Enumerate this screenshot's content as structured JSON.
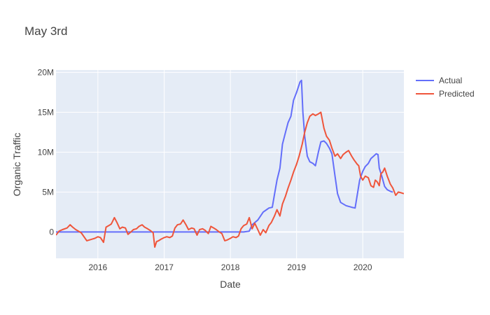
{
  "chart_data": {
    "type": "line",
    "title": "May 3rd",
    "xlabel": "Date",
    "ylabel": "Organic Traffic",
    "x_range": [
      "2015-05-15",
      "2020-08-15"
    ],
    "ylim": [
      -3300000,
      20300000
    ],
    "x_ticks": [
      {
        "label": "2016",
        "date": "2016-01-01"
      },
      {
        "label": "2017",
        "date": "2017-01-01"
      },
      {
        "label": "2018",
        "date": "2018-01-01"
      },
      {
        "label": "2019",
        "date": "2019-01-01"
      },
      {
        "label": "2020",
        "date": "2020-01-01"
      }
    ],
    "y_ticks": [
      {
        "label": "0",
        "value": 0
      },
      {
        "label": "5M",
        "value": 5000000
      },
      {
        "label": "10M",
        "value": 10000000
      },
      {
        "label": "15M",
        "value": 15000000
      },
      {
        "label": "20M",
        "value": 20000000
      }
    ],
    "grid": true,
    "legend": "top-right, outside plot",
    "background_color": "#E5ECF6",
    "series": [
      {
        "name": "Actual",
        "color": "#636EFA",
        "points": [
          [
            "2015-05-15",
            0
          ],
          [
            "2016-06-01",
            0
          ],
          [
            "2017-06-01",
            0
          ],
          [
            "2018-01-01",
            0
          ],
          [
            "2018-03-15",
            0
          ],
          [
            "2018-04-15",
            100000
          ],
          [
            "2018-05-01",
            900000
          ],
          [
            "2018-06-01",
            1500000
          ],
          [
            "2018-07-01",
            2500000
          ],
          [
            "2018-07-20",
            2800000
          ],
          [
            "2018-08-01",
            3000000
          ],
          [
            "2018-08-20",
            3100000
          ],
          [
            "2018-09-01",
            4700000
          ],
          [
            "2018-09-15",
            6500000
          ],
          [
            "2018-10-01",
            8000000
          ],
          [
            "2018-10-15",
            11000000
          ],
          [
            "2018-11-01",
            12500000
          ],
          [
            "2018-11-15",
            13700000
          ],
          [
            "2018-12-01",
            14500000
          ],
          [
            "2018-12-15",
            16500000
          ],
          [
            "2019-01-01",
            17500000
          ],
          [
            "2019-01-20",
            18800000
          ],
          [
            "2019-01-28",
            19000000
          ],
          [
            "2019-02-05",
            15000000
          ],
          [
            "2019-02-15",
            12000000
          ],
          [
            "2019-03-01",
            9500000
          ],
          [
            "2019-03-15",
            8800000
          ],
          [
            "2019-04-01",
            8600000
          ],
          [
            "2019-04-15",
            8300000
          ],
          [
            "2019-05-01",
            10000000
          ],
          [
            "2019-05-15",
            11300000
          ],
          [
            "2019-06-01",
            11400000
          ],
          [
            "2019-06-15",
            11100000
          ],
          [
            "2019-07-01",
            10500000
          ],
          [
            "2019-07-15",
            9800000
          ],
          [
            "2019-08-01",
            7000000
          ],
          [
            "2019-08-15",
            4800000
          ],
          [
            "2019-09-01",
            3700000
          ],
          [
            "2019-10-01",
            3300000
          ],
          [
            "2019-11-01",
            3100000
          ],
          [
            "2019-11-20",
            3000000
          ],
          [
            "2019-12-15",
            6500000
          ],
          [
            "2020-01-01",
            7600000
          ],
          [
            "2020-01-15",
            8200000
          ],
          [
            "2020-02-01",
            8600000
          ],
          [
            "2020-02-15",
            9200000
          ],
          [
            "2020-03-01",
            9500000
          ],
          [
            "2020-03-15",
            9800000
          ],
          [
            "2020-03-25",
            9700000
          ],
          [
            "2020-04-01",
            8000000
          ],
          [
            "2020-04-15",
            7000000
          ],
          [
            "2020-05-01",
            5700000
          ],
          [
            "2020-05-15",
            5300000
          ],
          [
            "2020-06-01",
            5100000
          ],
          [
            "2020-06-15",
            5000000
          ]
        ]
      },
      {
        "name": "Predicted",
        "color": "#EF553B",
        "points": [
          [
            "2015-05-15",
            -400000
          ],
          [
            "2015-06-01",
            100000
          ],
          [
            "2015-06-20",
            300000
          ],
          [
            "2015-07-15",
            500000
          ],
          [
            "2015-08-01",
            900000
          ],
          [
            "2015-08-15",
            600000
          ],
          [
            "2015-09-01",
            300000
          ],
          [
            "2015-10-01",
            -100000
          ],
          [
            "2015-11-01",
            -1100000
          ],
          [
            "2015-11-15",
            -1000000
          ],
          [
            "2015-12-01",
            -900000
          ],
          [
            "2015-12-15",
            -800000
          ],
          [
            "2016-01-01",
            -600000
          ],
          [
            "2016-01-15",
            -700000
          ],
          [
            "2016-02-01",
            -1300000
          ],
          [
            "2016-02-15",
            600000
          ],
          [
            "2016-03-01",
            800000
          ],
          [
            "2016-03-15",
            1000000
          ],
          [
            "2016-04-01",
            1800000
          ],
          [
            "2016-04-15",
            1200000
          ],
          [
            "2016-05-01",
            400000
          ],
          [
            "2016-05-15",
            600000
          ],
          [
            "2016-06-01",
            500000
          ],
          [
            "2016-06-15",
            -300000
          ],
          [
            "2016-07-01",
            0
          ],
          [
            "2016-07-15",
            300000
          ],
          [
            "2016-08-01",
            400000
          ],
          [
            "2016-08-15",
            700000
          ],
          [
            "2016-09-01",
            900000
          ],
          [
            "2016-09-15",
            600000
          ],
          [
            "2016-10-01",
            400000
          ],
          [
            "2016-10-15",
            200000
          ],
          [
            "2016-11-01",
            -100000
          ],
          [
            "2016-11-10",
            -1900000
          ],
          [
            "2016-11-20",
            -1200000
          ],
          [
            "2016-12-01",
            -1100000
          ],
          [
            "2016-12-15",
            -900000
          ],
          [
            "2017-01-01",
            -700000
          ],
          [
            "2017-01-15",
            -600000
          ],
          [
            "2017-02-01",
            -700000
          ],
          [
            "2017-02-15",
            -500000
          ],
          [
            "2017-03-01",
            500000
          ],
          [
            "2017-03-15",
            900000
          ],
          [
            "2017-04-01",
            1000000
          ],
          [
            "2017-04-15",
            1500000
          ],
          [
            "2017-05-01",
            900000
          ],
          [
            "2017-05-15",
            300000
          ],
          [
            "2017-06-01",
            500000
          ],
          [
            "2017-06-15",
            400000
          ],
          [
            "2017-07-01",
            -400000
          ],
          [
            "2017-07-15",
            300000
          ],
          [
            "2017-08-01",
            400000
          ],
          [
            "2017-08-15",
            200000
          ],
          [
            "2017-09-01",
            -200000
          ],
          [
            "2017-09-15",
            700000
          ],
          [
            "2017-10-01",
            500000
          ],
          [
            "2017-10-15",
            300000
          ],
          [
            "2017-11-01",
            0
          ],
          [
            "2017-11-15",
            -200000
          ],
          [
            "2017-12-01",
            -1100000
          ],
          [
            "2017-12-15",
            -1000000
          ],
          [
            "2018-01-01",
            -800000
          ],
          [
            "2018-01-15",
            -600000
          ],
          [
            "2018-02-01",
            -700000
          ],
          [
            "2018-02-15",
            -500000
          ],
          [
            "2018-03-01",
            400000
          ],
          [
            "2018-03-15",
            800000
          ],
          [
            "2018-04-01",
            1000000
          ],
          [
            "2018-04-15",
            1800000
          ],
          [
            "2018-05-01",
            400000
          ],
          [
            "2018-05-15",
            1100000
          ],
          [
            "2018-06-01",
            300000
          ],
          [
            "2018-06-15",
            -400000
          ],
          [
            "2018-07-01",
            300000
          ],
          [
            "2018-07-15",
            -100000
          ],
          [
            "2018-08-01",
            800000
          ],
          [
            "2018-08-15",
            1200000
          ],
          [
            "2018-09-01",
            2000000
          ],
          [
            "2018-09-15",
            2800000
          ],
          [
            "2018-10-01",
            2000000
          ],
          [
            "2018-10-15",
            3500000
          ],
          [
            "2018-11-01",
            4500000
          ],
          [
            "2018-11-15",
            5500000
          ],
          [
            "2018-12-01",
            6500000
          ],
          [
            "2018-12-15",
            7500000
          ],
          [
            "2019-01-01",
            8500000
          ],
          [
            "2019-01-15",
            9500000
          ],
          [
            "2019-02-01",
            11000000
          ],
          [
            "2019-02-15",
            12500000
          ],
          [
            "2019-03-01",
            13700000
          ],
          [
            "2019-03-15",
            14500000
          ],
          [
            "2019-04-01",
            14800000
          ],
          [
            "2019-04-15",
            14600000
          ],
          [
            "2019-05-01",
            14800000
          ],
          [
            "2019-05-15",
            15000000
          ],
          [
            "2019-06-01",
            13000000
          ],
          [
            "2019-06-15",
            12000000
          ],
          [
            "2019-07-01",
            11500000
          ],
          [
            "2019-07-15",
            10500000
          ],
          [
            "2019-08-01",
            9500000
          ],
          [
            "2019-08-15",
            9800000
          ],
          [
            "2019-09-01",
            9200000
          ],
          [
            "2019-09-15",
            9700000
          ],
          [
            "2019-10-01",
            10000000
          ],
          [
            "2019-10-15",
            10200000
          ],
          [
            "2019-11-01",
            9500000
          ],
          [
            "2019-11-15",
            9000000
          ],
          [
            "2019-12-01",
            8500000
          ],
          [
            "2019-12-10",
            8300000
          ],
          [
            "2019-12-20",
            7000000
          ],
          [
            "2020-01-01",
            6500000
          ],
          [
            "2020-01-15",
            7000000
          ],
          [
            "2020-02-01",
            6800000
          ],
          [
            "2020-02-15",
            5800000
          ],
          [
            "2020-03-01",
            5600000
          ],
          [
            "2020-03-10",
            6500000
          ],
          [
            "2020-03-20",
            6300000
          ],
          [
            "2020-04-01",
            5800000
          ],
          [
            "2020-04-10",
            7300000
          ],
          [
            "2020-04-20",
            7500000
          ],
          [
            "2020-05-01",
            8000000
          ],
          [
            "2020-05-15",
            7000000
          ],
          [
            "2020-06-01",
            6000000
          ],
          [
            "2020-06-15",
            5500000
          ],
          [
            "2020-07-01",
            4600000
          ],
          [
            "2020-07-15",
            5000000
          ],
          [
            "2020-08-01",
            4900000
          ],
          [
            "2020-08-15",
            4800000
          ]
        ]
      }
    ]
  }
}
